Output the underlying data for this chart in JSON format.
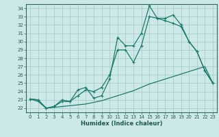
{
  "bg_color": "#cce8e8",
  "grid_color": "#aacccc",
  "line_color": "#1a7a6a",
  "marker_color": "#1a7a6a",
  "xlabel": "Humidex (Indice chaleur)",
  "xlim": [
    -0.5,
    23.5
  ],
  "ylim": [
    21.5,
    34.5
  ],
  "yticks": [
    22,
    23,
    24,
    25,
    26,
    27,
    28,
    29,
    30,
    31,
    32,
    33,
    34
  ],
  "xticks": [
    0,
    1,
    2,
    3,
    4,
    5,
    6,
    7,
    8,
    9,
    10,
    11,
    12,
    13,
    14,
    15,
    16,
    17,
    18,
    19,
    20,
    21,
    22,
    23
  ],
  "series1_x": [
    0,
    1,
    2,
    3,
    4,
    5,
    6,
    7,
    8,
    9,
    10,
    11,
    12,
    13,
    14,
    15,
    16,
    17,
    18,
    19,
    20,
    21,
    22,
    23
  ],
  "series1_y": [
    23.1,
    22.8,
    22.0,
    22.1,
    22.2,
    22.3,
    22.4,
    22.5,
    22.7,
    22.9,
    23.2,
    23.5,
    23.8,
    24.1,
    24.5,
    24.9,
    25.2,
    25.5,
    25.8,
    26.1,
    26.4,
    26.7,
    27.0,
    25.0
  ],
  "series2_x": [
    0,
    1,
    2,
    3,
    4,
    5,
    6,
    7,
    8,
    9,
    10,
    11,
    12,
    13,
    14,
    15,
    16,
    17,
    18,
    19,
    20,
    21,
    22,
    23
  ],
  "series2_y": [
    23.1,
    23.0,
    22.0,
    22.2,
    23.0,
    22.8,
    23.5,
    24.2,
    24.0,
    24.5,
    26.0,
    29.0,
    29.0,
    27.5,
    29.5,
    33.0,
    32.8,
    32.5,
    32.2,
    31.8,
    30.0,
    28.8,
    26.5,
    25.0
  ],
  "series3_x": [
    0,
    1,
    2,
    3,
    4,
    5,
    6,
    7,
    8,
    9,
    10,
    11,
    12,
    13,
    14,
    15,
    16,
    17,
    18,
    19,
    20,
    21,
    22,
    23
  ],
  "series3_y": [
    23.1,
    23.0,
    22.0,
    22.2,
    22.8,
    22.8,
    24.2,
    24.5,
    23.2,
    23.5,
    25.5,
    30.5,
    29.5,
    29.5,
    31.0,
    34.3,
    32.8,
    32.8,
    33.2,
    32.0,
    30.0,
    28.8,
    26.5,
    25.0
  ]
}
